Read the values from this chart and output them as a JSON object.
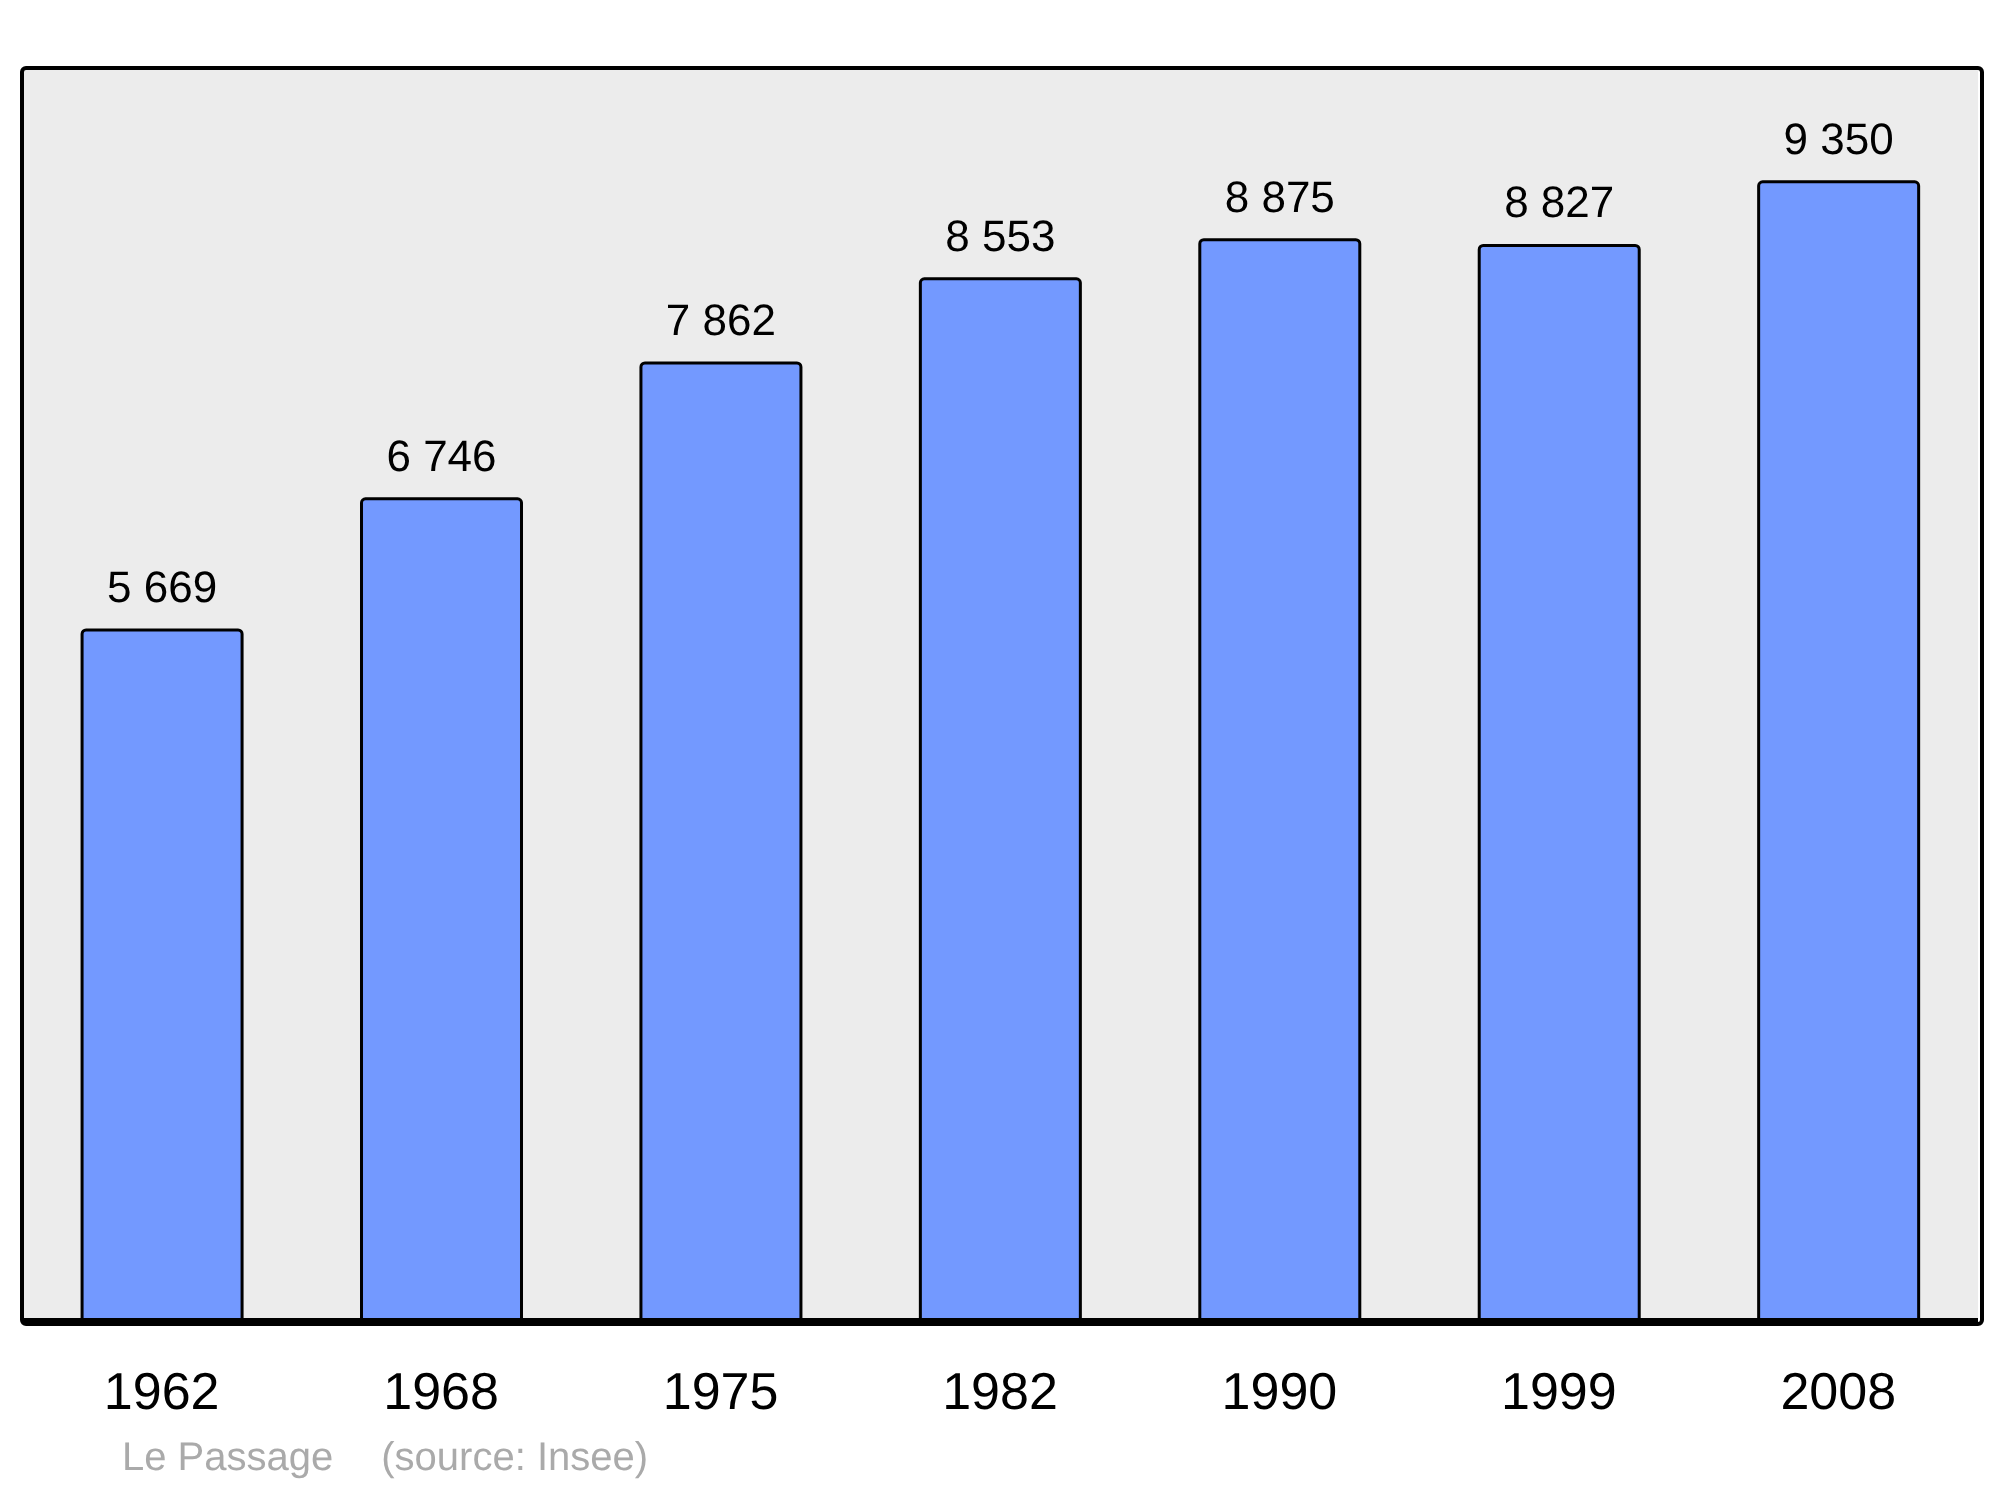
{
  "chart_data": {
    "type": "bar",
    "categories": [
      "1962",
      "1968",
      "1975",
      "1982",
      "1990",
      "1999",
      "2008"
    ],
    "values": [
      5669,
      6746,
      7862,
      8553,
      8875,
      8827,
      9350
    ],
    "value_labels": [
      "5 669",
      "6 746",
      "7 862",
      "8 553",
      "8 875",
      "8 827",
      "9 350"
    ],
    "color": "#7399ff",
    "annotations": [
      "Le Passage",
      "(source: Insee)"
    ]
  }
}
